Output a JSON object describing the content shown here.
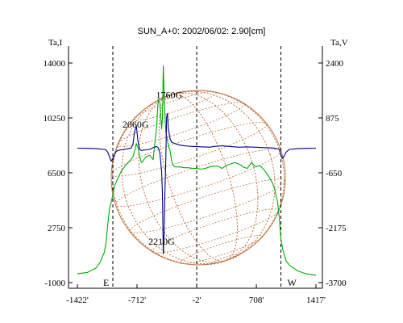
{
  "chart_data": {
    "type": "line",
    "title": "SUN_A+0: 2002/06/02: 2.90[cm]",
    "left_axis_label": "Ta,I",
    "right_axis_label": "Ta,V",
    "x_ticks": [
      -1422,
      -712,
      -2,
      708,
      1417
    ],
    "x_tick_labels": [
      "-1422'",
      "-712'",
      "-2'",
      "708'",
      "1417'"
    ],
    "x_range": [
      -1422,
      1417
    ],
    "y_left_ticks": [
      14000,
      10250,
      6500,
      2750,
      -1000
    ],
    "y_left_tick_labels": [
      "14000",
      "10250",
      "6500",
      "2750",
      "-1000"
    ],
    "y_left_range": [
      -1000,
      14000
    ],
    "y_right_ticks": [
      2400,
      875,
      -650,
      -2175,
      -3700
    ],
    "y_right_tick_labels": [
      "2400",
      "875",
      "-650",
      "-2175",
      "-3700"
    ],
    "y_right_range": [
      -3700,
      2400
    ],
    "grid": false,
    "vertical_markers": [
      -1000,
      -2,
      1000
    ],
    "limb_labels": {
      "east": "E",
      "west": "W"
    },
    "annotations": [
      {
        "text": "2060G",
        "x": -730,
        "y": 9600
      },
      {
        "text": "1760G",
        "x": -330,
        "y": 11600
      },
      {
        "text": "2210G",
        "x": -420,
        "y": 1600
      }
    ],
    "series": [
      {
        "color": "#00aa00",
        "axis": "left",
        "x": [
          -1422,
          -1300,
          -1200,
          -1150,
          -1100,
          -1080,
          -1060,
          -1040,
          -1020,
          -1000,
          -980,
          -950,
          -900,
          -850,
          -800,
          -760,
          -740,
          -720,
          -700,
          -680,
          -660,
          -640,
          -620,
          -600,
          -560,
          -520,
          -500,
          -480,
          -460,
          -440,
          -420,
          -410,
          -400,
          -390,
          -380,
          -370,
          -360,
          -350,
          -340,
          -320,
          -300,
          -280,
          -260,
          -240,
          -220,
          -200,
          -150,
          -100,
          -50,
          0,
          50,
          100,
          150,
          200,
          250,
          300,
          350,
          400,
          450,
          500,
          550,
          600,
          650,
          700,
          750,
          800,
          850,
          900,
          920,
          940,
          960,
          980,
          1000,
          1020,
          1040,
          1060,
          1100,
          1150,
          1200,
          1300,
          1417
        ],
        "values": [
          -400,
          -300,
          0,
          400,
          1100,
          1800,
          3000,
          4000,
          4500,
          5000,
          5600,
          6000,
          6600,
          7000,
          7300,
          7600,
          8000,
          8500,
          8200,
          7600,
          7200,
          7300,
          7500,
          7600,
          7700,
          7400,
          8500,
          9500,
          11500,
          11300,
          9500,
          10200,
          13800,
          12000,
          10500,
          9300,
          9000,
          8700,
          8400,
          8000,
          7300,
          7000,
          6900,
          6900,
          6900,
          6900,
          6850,
          6850,
          6800,
          6800,
          6750,
          6800,
          6900,
          6950,
          6950,
          6800,
          7000,
          7100,
          7200,
          7100,
          6900,
          6800,
          7200,
          6900,
          7000,
          6700,
          6300,
          5800,
          5500,
          5000,
          4500,
          3500,
          2000,
          1300,
          900,
          500,
          200,
          0,
          -200,
          -400,
          -500
        ]
      },
      {
        "color": "#00007f",
        "axis": "right",
        "x": [
          -1422,
          -1300,
          -1200,
          -1150,
          -1100,
          -1080,
          -1060,
          -1040,
          -1020,
          -1000,
          -980,
          -960,
          -940,
          -920,
          -900,
          -860,
          -820,
          -800,
          -780,
          -760,
          -740,
          -720,
          -700,
          -680,
          -660,
          -640,
          -600,
          -560,
          -520,
          -480,
          -460,
          -440,
          -420,
          -410,
          -400,
          -390,
          -380,
          -370,
          -360,
          -350,
          -340,
          -320,
          -300,
          -260,
          -220,
          -200,
          -150,
          -100,
          -50,
          0,
          50,
          100,
          150,
          200,
          250,
          300,
          400,
          500,
          600,
          700,
          800,
          900,
          950,
          980,
          1000,
          1020,
          1040,
          1060,
          1100,
          1150,
          1200,
          1300,
          1417
        ],
        "values": [
          35,
          30,
          20,
          10,
          0,
          -20,
          -80,
          -200,
          -330,
          -250,
          -130,
          -60,
          -30,
          -20,
          -10,
          0,
          20,
          30,
          40,
          150,
          500,
          650,
          200,
          0,
          -30,
          -20,
          -10,
          0,
          50,
          80,
          50,
          -100,
          -600,
          -1200,
          -2900,
          -2300,
          -1200,
          -300,
          900,
          1000,
          600,
          300,
          200,
          160,
          130,
          120,
          100,
          90,
          80,
          80,
          70,
          70,
          60,
          80,
          90,
          100,
          80,
          60,
          70,
          60,
          50,
          40,
          20,
          0,
          -150,
          -250,
          -180,
          -80,
          0,
          10,
          20,
          30,
          35
        ]
      }
    ]
  }
}
